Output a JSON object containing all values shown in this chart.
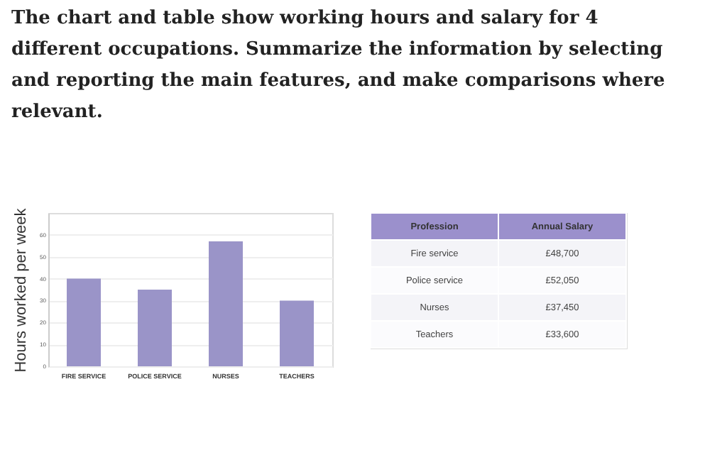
{
  "chart_data": [
    {
      "type": "bar",
      "title": "The chart and table show working hours and salary for 4 different occupations. Summarize the information by selecting and reporting the main features, and make comparisons where relevant.",
      "ylabel": "Hours worked per week",
      "categories": [
        "FIRE SERVICE",
        "POLICE SERVICE",
        "NURSES",
        "TEACHERS"
      ],
      "values": [
        40,
        35,
        57,
        30
      ],
      "color": "#9a94c8",
      "ylim": [
        0,
        70
      ],
      "yticks": [
        0,
        10,
        20,
        30,
        40,
        50,
        60
      ],
      "grid": "y"
    },
    {
      "type": "other",
      "xlabel": "Profession",
      "ylabel": "Annual Salary",
      "categories": [
        "Fire service",
        "Police service",
        "Nurses",
        "Teachers"
      ],
      "value_labels": [
        "£48,700",
        "£52,050",
        "£37,450",
        "£33,600"
      ],
      "color": "#9b90cc"
    }
  ]
}
